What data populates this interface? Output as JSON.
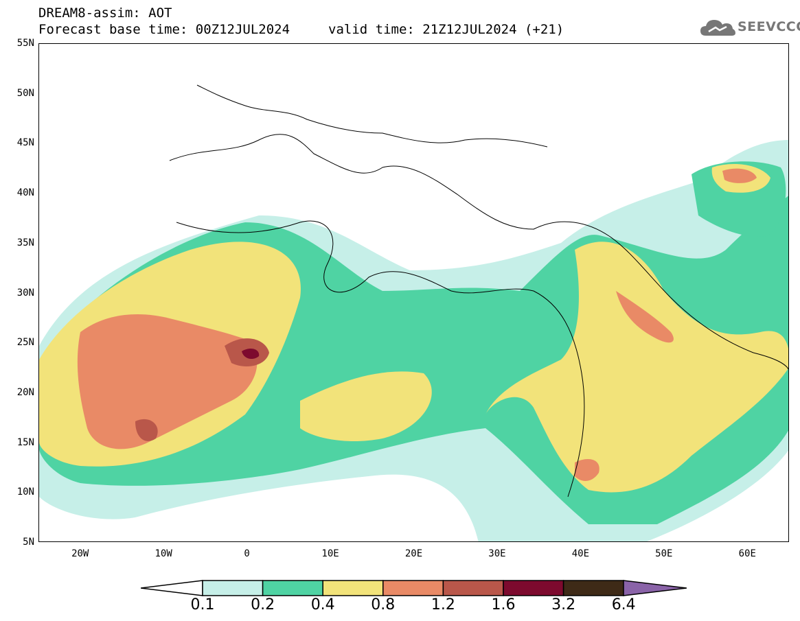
{
  "header": {
    "title": "DREAM8-assim: AOT",
    "base_time": "Forecast base time: 00Z12JUL2024",
    "valid_time": "valid time: 21Z12JUL2024 (+21)"
  },
  "logo": {
    "text": "SEEVCCC",
    "icon": "cloud-icon"
  },
  "map": {
    "lat_labels": [
      "55N",
      "50N",
      "45N",
      "40N",
      "35N",
      "30N",
      "25N",
      "20N",
      "15N",
      "10N",
      "5N"
    ],
    "lon_labels": [
      "20W",
      "10W",
      "0",
      "10E",
      "20E",
      "30E",
      "40E",
      "50E",
      "60E"
    ],
    "lat_range": [
      5,
      55
    ],
    "lon_range": [
      -25,
      65
    ]
  },
  "colorbar": {
    "levels": [
      "0.1",
      "0.2",
      "0.4",
      "0.8",
      "1.2",
      "1.6",
      "3.2",
      "6.4"
    ],
    "colors": [
      "#c6efe8",
      "#4fd3a3",
      "#f2e37a",
      "#e98a66",
      "#b9574a",
      "#7d0a2e",
      "#3e2a17"
    ],
    "under_color": "#ffffff",
    "over_color": "#8a63a8"
  }
}
